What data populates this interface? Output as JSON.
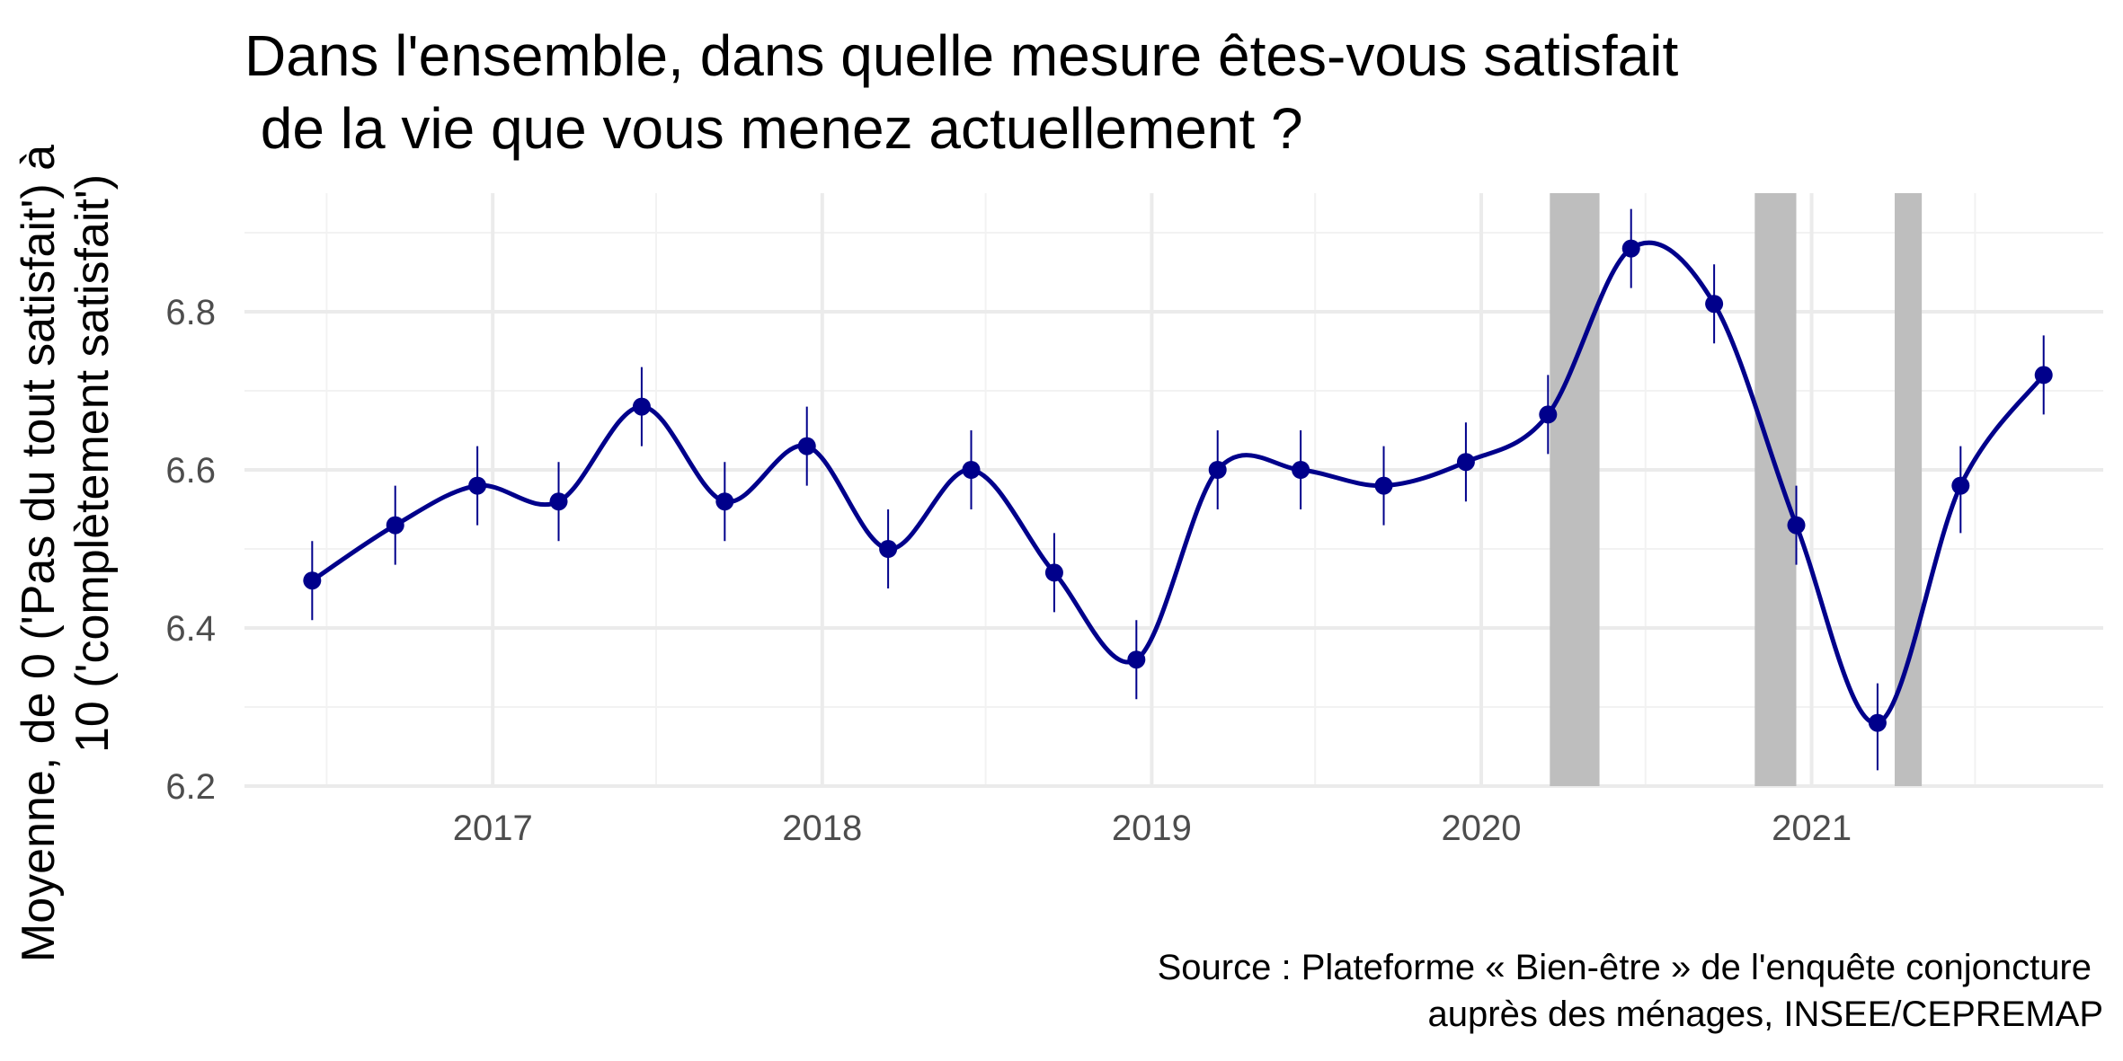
{
  "chart_data": {
    "type": "line",
    "title": [
      "Dans l'ensemble, dans quelle mesure êtes-vous satisfait",
      " de la vie que vous menez actuellement ?"
    ],
    "ylabel": [
      "Moyenne, de 0 ('Pas du tout satisfait') à",
      "10 ('complètement satisfait')"
    ],
    "xlabel": "",
    "caption": [
      "Source : Plateforme « Bien-être » de l'enquête conjoncture",
      "auprès des ménages, INSEE/CEPREMAP"
    ],
    "x_ticks": [
      "2017",
      "2018",
      "2019",
      "2020",
      "2021"
    ],
    "y_ticks": [
      "6.2",
      "6.4",
      "6.6",
      "6.8"
    ],
    "xlim": [
      "2016-04-01",
      "2021-11-20"
    ],
    "ylim": [
      6.2,
      6.95
    ],
    "grid": true,
    "series": [
      {
        "color": "#00008B",
        "points": [
          {
            "date": "2016-06-15",
            "value": 6.46,
            "lo": 6.41,
            "hi": 6.51
          },
          {
            "date": "2016-09-15",
            "value": 6.53,
            "lo": 6.48,
            "hi": 6.58
          },
          {
            "date": "2016-12-15",
            "value": 6.58,
            "lo": 6.53,
            "hi": 6.63
          },
          {
            "date": "2017-03-15",
            "value": 6.56,
            "lo": 6.51,
            "hi": 6.61
          },
          {
            "date": "2017-06-15",
            "value": 6.68,
            "lo": 6.63,
            "hi": 6.73
          },
          {
            "date": "2017-09-15",
            "value": 6.56,
            "lo": 6.51,
            "hi": 6.61
          },
          {
            "date": "2017-12-15",
            "value": 6.63,
            "lo": 6.58,
            "hi": 6.68
          },
          {
            "date": "2018-03-15",
            "value": 6.5,
            "lo": 6.45,
            "hi": 6.55
          },
          {
            "date": "2018-06-15",
            "value": 6.6,
            "lo": 6.55,
            "hi": 6.65
          },
          {
            "date": "2018-09-15",
            "value": 6.47,
            "lo": 6.42,
            "hi": 6.52
          },
          {
            "date": "2018-12-15",
            "value": 6.36,
            "lo": 6.31,
            "hi": 6.41
          },
          {
            "date": "2019-03-15",
            "value": 6.6,
            "lo": 6.55,
            "hi": 6.65
          },
          {
            "date": "2019-06-15",
            "value": 6.6,
            "lo": 6.55,
            "hi": 6.65
          },
          {
            "date": "2019-09-15",
            "value": 6.58,
            "lo": 6.53,
            "hi": 6.63
          },
          {
            "date": "2019-12-15",
            "value": 6.61,
            "lo": 6.56,
            "hi": 6.66
          },
          {
            "date": "2020-03-15",
            "value": 6.67,
            "lo": 6.62,
            "hi": 6.72
          },
          {
            "date": "2020-06-15",
            "value": 6.88,
            "lo": 6.83,
            "hi": 6.93
          },
          {
            "date": "2020-09-15",
            "value": 6.81,
            "lo": 6.76,
            "hi": 6.86
          },
          {
            "date": "2020-12-15",
            "value": 6.53,
            "lo": 6.48,
            "hi": 6.58
          },
          {
            "date": "2021-03-15",
            "value": 6.28,
            "lo": 6.22,
            "hi": 6.33
          },
          {
            "date": "2021-06-15",
            "value": 6.58,
            "lo": 6.52,
            "hi": 6.63
          },
          {
            "date": "2021-09-15",
            "value": 6.72,
            "lo": 6.67,
            "hi": 6.77
          }
        ]
      }
    ],
    "shaded_periods": [
      {
        "start": "2020-03-17",
        "end": "2020-05-11",
        "color": "#bebebe"
      },
      {
        "start": "2020-10-30",
        "end": "2020-12-15",
        "color": "#bebebe"
      },
      {
        "start": "2021-04-03",
        "end": "2021-05-03",
        "color": "#bebebe"
      }
    ]
  }
}
